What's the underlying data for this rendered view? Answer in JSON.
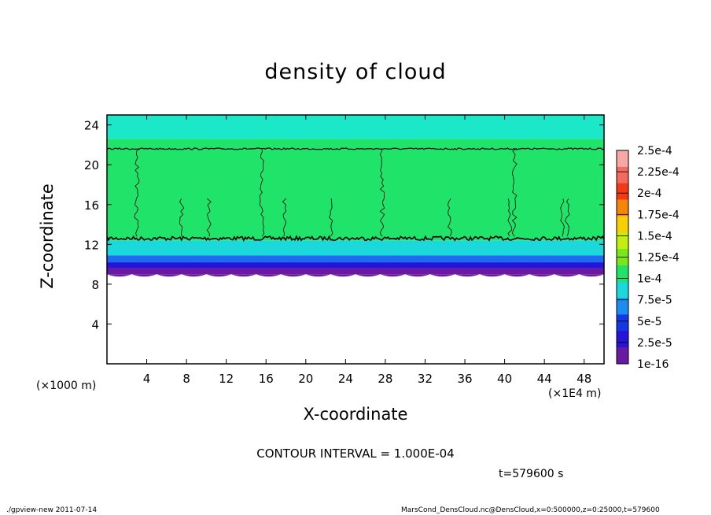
{
  "chart_data": {
    "type": "heatmap",
    "title": "density of cloud",
    "xlabel": "X-coordinate",
    "ylabel": "Z-coordinate",
    "x_unit_label": "(×1E4 m)",
    "y_unit_label": "(×1000 m)",
    "xlim": [
      0,
      50
    ],
    "ylim": [
      0,
      25
    ],
    "x_ticks": [
      4,
      8,
      12,
      16,
      20,
      24,
      28,
      32,
      36,
      40,
      44,
      48
    ],
    "y_ticks": [
      4,
      8,
      12,
      16,
      20,
      24
    ],
    "colorbar": {
      "labels": [
        "2.5e-4",
        "2.25e-4",
        "2e-4",
        "1.75e-4",
        "1.5e-4",
        "1.25e-4",
        "1e-4",
        "7.5e-5",
        "5e-5",
        "2.5e-5",
        "1e-16"
      ],
      "colors": [
        "#f8a7a7",
        "#f46a5e",
        "#f23b14",
        "#f5860c",
        "#f7cf05",
        "#c3ef10",
        "#7be61c",
        "#20e46a",
        "#1bd8da",
        "#1b8cf0",
        "#1438e6",
        "#2614d8",
        "#6a1aa0"
      ]
    },
    "field_bands": [
      {
        "z_bottom": 9.0,
        "z_top": 9.6,
        "value": "1e-16",
        "color": "#6a1aa0"
      },
      {
        "z_bottom": 9.6,
        "z_top": 10.2,
        "value": "2.5e-5",
        "color": "#2614d8"
      },
      {
        "z_bottom": 10.2,
        "z_top": 10.9,
        "value": "5e-5",
        "color": "#1b6cf0"
      },
      {
        "z_bottom": 10.9,
        "z_top": 12.4,
        "value": "7.5e-5",
        "color": "#1bd8da"
      },
      {
        "z_bottom": 12.4,
        "z_top": 22.6,
        "value": "1e-4",
        "color": "#20e46a"
      },
      {
        "z_bottom": 22.6,
        "z_top": 25.0,
        "value": "7.5e-5",
        "color": "#1be8c8"
      }
    ],
    "contour_lines_z": [
      12.6,
      21.6
    ],
    "contour_interval": "CONTOUR INTERVAL = 1.000E-04",
    "time": "t=579600 s"
  },
  "footer": {
    "left": "./gpview-new   2011-07-14",
    "right": "MarsCond_DensCloud.nc@DensCloud,x=0:500000,z=0:25000,t=579600"
  }
}
